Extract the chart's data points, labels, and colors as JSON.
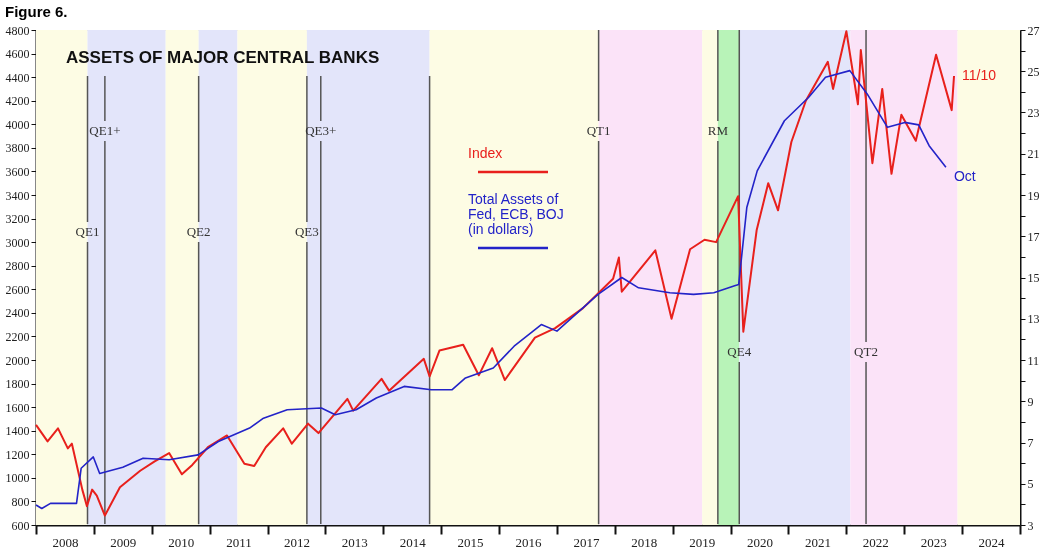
{
  "chart_data": {
    "type": "line",
    "title": "Figure 6.",
    "subtitle": "ASSETS OF MAJOR CENTRAL BANKS",
    "legend": "top",
    "grid": false,
    "marker": "none",
    "line_style": "solid",
    "xlim": [
      2008,
      2025
    ],
    "xticks": [
      {
        "value": 2008,
        "label": null
      },
      {
        "value": 2008.5,
        "label": "2008"
      },
      {
        "value": 2009,
        "label": null
      },
      {
        "value": 2009.5,
        "label": "2009"
      },
      {
        "value": 2010,
        "label": null
      },
      {
        "value": 2010.5,
        "label": "2010"
      },
      {
        "value": 2011,
        "label": null
      },
      {
        "value": 2011.5,
        "label": "2011"
      },
      {
        "value": 2012,
        "label": null
      },
      {
        "value": 2012.5,
        "label": "2012"
      },
      {
        "value": 2013,
        "label": null
      },
      {
        "value": 2013.5,
        "label": "2013"
      },
      {
        "value": 2014,
        "label": null
      },
      {
        "value": 2014.5,
        "label": "2014"
      },
      {
        "value": 2015,
        "label": null
      },
      {
        "value": 2015.5,
        "label": "2015"
      },
      {
        "value": 2016,
        "label": null
      },
      {
        "value": 2016.5,
        "label": "2016"
      },
      {
        "value": 2017,
        "label": null
      },
      {
        "value": 2017.5,
        "label": "2017"
      },
      {
        "value": 2018,
        "label": null
      },
      {
        "value": 2018.5,
        "label": "2018"
      },
      {
        "value": 2019,
        "label": null
      },
      {
        "value": 2019.5,
        "label": "2019"
      },
      {
        "value": 2020,
        "label": null
      },
      {
        "value": 2020.5,
        "label": "2020"
      },
      {
        "value": 2021,
        "label": null
      },
      {
        "value": 2021.5,
        "label": "2021"
      },
      {
        "value": 2022,
        "label": null
      },
      {
        "value": 2022.5,
        "label": "2022"
      },
      {
        "value": 2023,
        "label": null
      },
      {
        "value": 2023.5,
        "label": "2023"
      },
      {
        "value": 2024,
        "label": null
      },
      {
        "value": 2024.5,
        "label": "2024"
      },
      {
        "value": 2025,
        "label": null
      }
    ],
    "ylim": [
      600,
      4800
    ],
    "yticks": [
      600,
      800,
      1000,
      1200,
      1400,
      1600,
      1800,
      2000,
      2200,
      2400,
      2600,
      2800,
      3000,
      3200,
      3400,
      3600,
      3800,
      4000,
      4200,
      4400,
      4600,
      4800
    ],
    "y2lim": [
      3,
      27
    ],
    "y2ticks": [
      3,
      {
        "value": 4,
        "label": null
      },
      5,
      {
        "value": 6,
        "label": null
      },
      7,
      {
        "value": 8,
        "label": null
      },
      9,
      {
        "value": 10,
        "label": null
      },
      11,
      {
        "value": 12,
        "label": null
      },
      13,
      {
        "value": 14,
        "label": null
      },
      15,
      {
        "value": 16,
        "label": null
      },
      17,
      {
        "value": 18,
        "label": null
      },
      19,
      {
        "value": 20,
        "label": null
      },
      21,
      {
        "value": 22,
        "label": null
      },
      23,
      {
        "value": 24,
        "label": null
      },
      25,
      {
        "value": 26,
        "label": null
      },
      27
    ],
    "series": [
      {
        "name": "Index",
        "color": "#e8201c",
        "values": [
          1450,
          1310,
          1420,
          1250,
          1290,
          900,
          760,
          900,
          850,
          680,
          920,
          1060,
          1140,
          1210,
          1030,
          1110,
          1260,
          1360,
          1120,
          1100,
          1260,
          1420,
          1290,
          1460,
          1380,
          1670,
          1570,
          1840,
          1740,
          2010,
          1860,
          2080,
          2130,
          1870,
          2100,
          1830,
          2190,
          2270,
          2440,
          2690,
          2870,
          2580,
          2930,
          2350,
          2940,
          3020,
          3000,
          3390,
          2240,
          3100,
          3500,
          3270,
          3850,
          4200,
          4530,
          4300,
          4790,
          4170,
          4630,
          3670,
          4300,
          3580,
          4080,
          3860,
          4590,
          4120,
          4410
        ],
        "x": [
          2008.0,
          2008.2,
          2008.38,
          2008.55,
          2008.62,
          2008.8,
          2008.88,
          2008.97,
          2009.05,
          2009.19,
          2009.45,
          2009.8,
          2010.05,
          2010.3,
          2010.52,
          2010.7,
          2010.97,
          2011.3,
          2011.6,
          2011.77,
          2011.97,
          2012.27,
          2012.42,
          2012.7,
          2012.88,
          2013.38,
          2013.48,
          2013.97,
          2014.1,
          2014.7,
          2014.8,
          2014.97,
          2015.38,
          2015.65,
          2015.88,
          2016.1,
          2016.62,
          2016.97,
          2017.45,
          2017.97,
          2018.07,
          2018.12,
          2018.7,
          2018.98,
          2019.3,
          2019.55,
          2019.75,
          2020.13,
          2020.22,
          2020.45,
          2020.65,
          2020.82,
          2021.05,
          2021.3,
          2021.68,
          2021.77,
          2022.0,
          2022.2,
          2022.25,
          2022.45,
          2022.62,
          2022.78,
          2022.95,
          2023.2,
          2023.55,
          2023.82,
          2023.86
        ]
      },
      {
        "name": "Total Assets of\nFed, ECB, BOJ\n(in dollars)",
        "color": "#2323c8",
        "axis": "y2",
        "values": [
          3.97,
          3.8,
          4.05,
          4.05,
          5.75,
          6.3,
          5.5,
          5.8,
          6.24,
          6.16,
          6.4,
          7.05,
          7.7,
          8.18,
          8.59,
          8.67,
          8.35,
          8.59,
          9.16,
          9.72,
          9.56,
          9.56,
          10.13,
          10.61,
          11.67,
          12.72,
          12.4,
          14.18,
          15.0,
          14.5,
          14.26,
          14.18,
          14.26,
          14.6,
          14.66,
          18.39,
          20.17,
          22.6,
          23.74,
          24.71,
          25.03,
          23.9,
          22.28,
          22.52,
          22.4,
          21.39,
          20.34
        ],
        "x": [
          2008.0,
          2008.1,
          2008.25,
          2008.7,
          2008.78,
          2008.99,
          2009.1,
          2009.5,
          2009.85,
          2010.3,
          2010.8,
          2011.15,
          2011.69,
          2011.93,
          2012.34,
          2012.93,
          2013.17,
          2013.53,
          2013.88,
          2014.36,
          2014.83,
          2015.19,
          2015.42,
          2015.9,
          2016.26,
          2016.73,
          2017.0,
          2017.71,
          2018.12,
          2018.41,
          2018.95,
          2019.36,
          2019.71,
          2020.07,
          2020.14,
          2020.28,
          2020.46,
          2020.93,
          2021.35,
          2021.64,
          2022.06,
          2022.36,
          2022.71,
          2023.01,
          2023.25,
          2023.43,
          2023.72
        ]
      }
    ],
    "bands": [
      {
        "axis": "x",
        "from": 2008,
        "to": 2008.89,
        "color": "#fdfce4"
      },
      {
        "axis": "x",
        "from": 2008.89,
        "to": 2010.24,
        "color": "#e3e5fa"
      },
      {
        "axis": "x",
        "from": 2010.24,
        "to": 2010.81,
        "color": "#fdfce4"
      },
      {
        "axis": "x",
        "from": 2010.81,
        "to": 2011.48,
        "color": "#e3e5fa"
      },
      {
        "axis": "x",
        "from": 2011.48,
        "to": 2012.68,
        "color": "#fdfce4"
      },
      {
        "axis": "x",
        "from": 2012.68,
        "to": 2014.8,
        "color": "#e3e5fa"
      },
      {
        "axis": "x",
        "from": 2014.8,
        "to": 2017.72,
        "color": "#fdfce4"
      },
      {
        "axis": "x",
        "from": 2017.72,
        "to": 2019.51,
        "color": "#fbe3f8"
      },
      {
        "axis": "x",
        "from": 2019.51,
        "to": 2019.78,
        "color": "#fdfce4"
      },
      {
        "axis": "x",
        "from": 2019.78,
        "to": 2020.15,
        "color": "#b8f3b8"
      },
      {
        "axis": "x",
        "from": 2020.15,
        "to": 2022.07,
        "color": "#e3e5fa"
      },
      {
        "axis": "x",
        "from": 2022.07,
        "to": 2023.92,
        "color": "#fbe3f8"
      },
      {
        "axis": "x",
        "from": 2023.92,
        "to": 2025,
        "color": "#fdfce4"
      }
    ],
    "ref_lines": [
      {
        "axis": "x",
        "value": 2008.89,
        "label": "QE1",
        "color": "#555555"
      },
      {
        "axis": "x",
        "value": 2009.19,
        "label": "QE1+",
        "color": "#555555"
      },
      {
        "axis": "x",
        "value": 2010.81,
        "label": "QE2",
        "color": "#555555"
      },
      {
        "axis": "x",
        "value": 2012.68,
        "label": "QE3",
        "color": "#555555"
      },
      {
        "axis": "x",
        "value": 2012.92,
        "label": "QE3+",
        "color": "#555555"
      },
      {
        "axis": "x",
        "value": 2014.8,
        "label": null,
        "color": "#555555"
      },
      {
        "axis": "x",
        "value": 2017.72,
        "label": "QT1",
        "color": "#555555"
      },
      {
        "axis": "x",
        "value": 2019.78,
        "label": "RM",
        "color": "#555555"
      },
      {
        "axis": "x",
        "value": 2020.15,
        "label": "QE4",
        "color": "#555555"
      },
      {
        "axis": "x",
        "value": 2022.34,
        "label": "QT2",
        "color": "#555555"
      }
    ],
    "annotations": [
      "11/10",
      "Oct"
    ]
  }
}
